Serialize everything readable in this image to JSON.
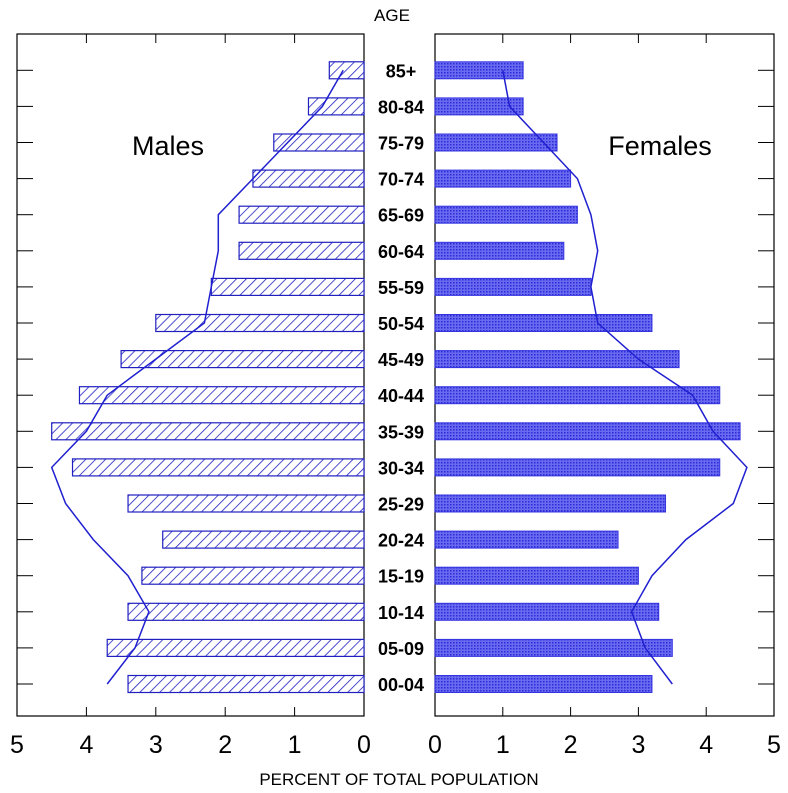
{
  "chart_data": {
    "type": "bar",
    "orientation": "horizontal",
    "layout": "population-pyramid",
    "top_label": "AGE",
    "xlabel": "PERCENT OF TOTAL POPULATION",
    "xlim": [
      0,
      5
    ],
    "x_ticks": [
      "5",
      "4",
      "3",
      "2",
      "1",
      "0",
      "0",
      "1",
      "2",
      "3",
      "4",
      "5"
    ],
    "categories": [
      "00-04",
      "05-09",
      "10-14",
      "15-19",
      "20-24",
      "25-29",
      "30-34",
      "35-39",
      "40-44",
      "45-49",
      "50-54",
      "55-59",
      "60-64",
      "65-69",
      "70-74",
      "75-79",
      "80-84",
      "85+"
    ],
    "series": [
      {
        "name": "Males",
        "side": "left",
        "values": [
          3.4,
          3.7,
          3.4,
          3.2,
          2.9,
          3.4,
          4.2,
          4.5,
          4.1,
          3.5,
          3.0,
          2.2,
          1.8,
          1.8,
          1.6,
          1.3,
          0.8,
          0.5
        ],
        "fill": "hatch",
        "color": "#2020c0"
      },
      {
        "name": "Females",
        "side": "right",
        "values": [
          3.2,
          3.5,
          3.3,
          3.0,
          2.7,
          3.4,
          4.2,
          4.5,
          4.2,
          3.6,
          3.2,
          2.3,
          1.9,
          2.1,
          2.0,
          1.8,
          1.3,
          1.3
        ],
        "fill": "dotted",
        "color": "#3535e0"
      }
    ],
    "overlay_lines": [
      {
        "side": "left",
        "values": [
          3.7,
          3.3,
          3.1,
          3.4,
          3.9,
          4.3,
          4.5,
          4.0,
          3.7,
          3.0,
          2.3,
          2.2,
          2.1,
          2.1,
          1.6,
          1.1,
          0.6,
          0.3
        ]
      },
      {
        "side": "right",
        "values": [
          3.5,
          3.1,
          2.9,
          3.2,
          3.7,
          4.4,
          4.6,
          4.1,
          3.8,
          3.0,
          2.4,
          2.3,
          2.4,
          2.3,
          2.1,
          1.6,
          1.1,
          1.0
        ]
      }
    ],
    "grid": false
  }
}
